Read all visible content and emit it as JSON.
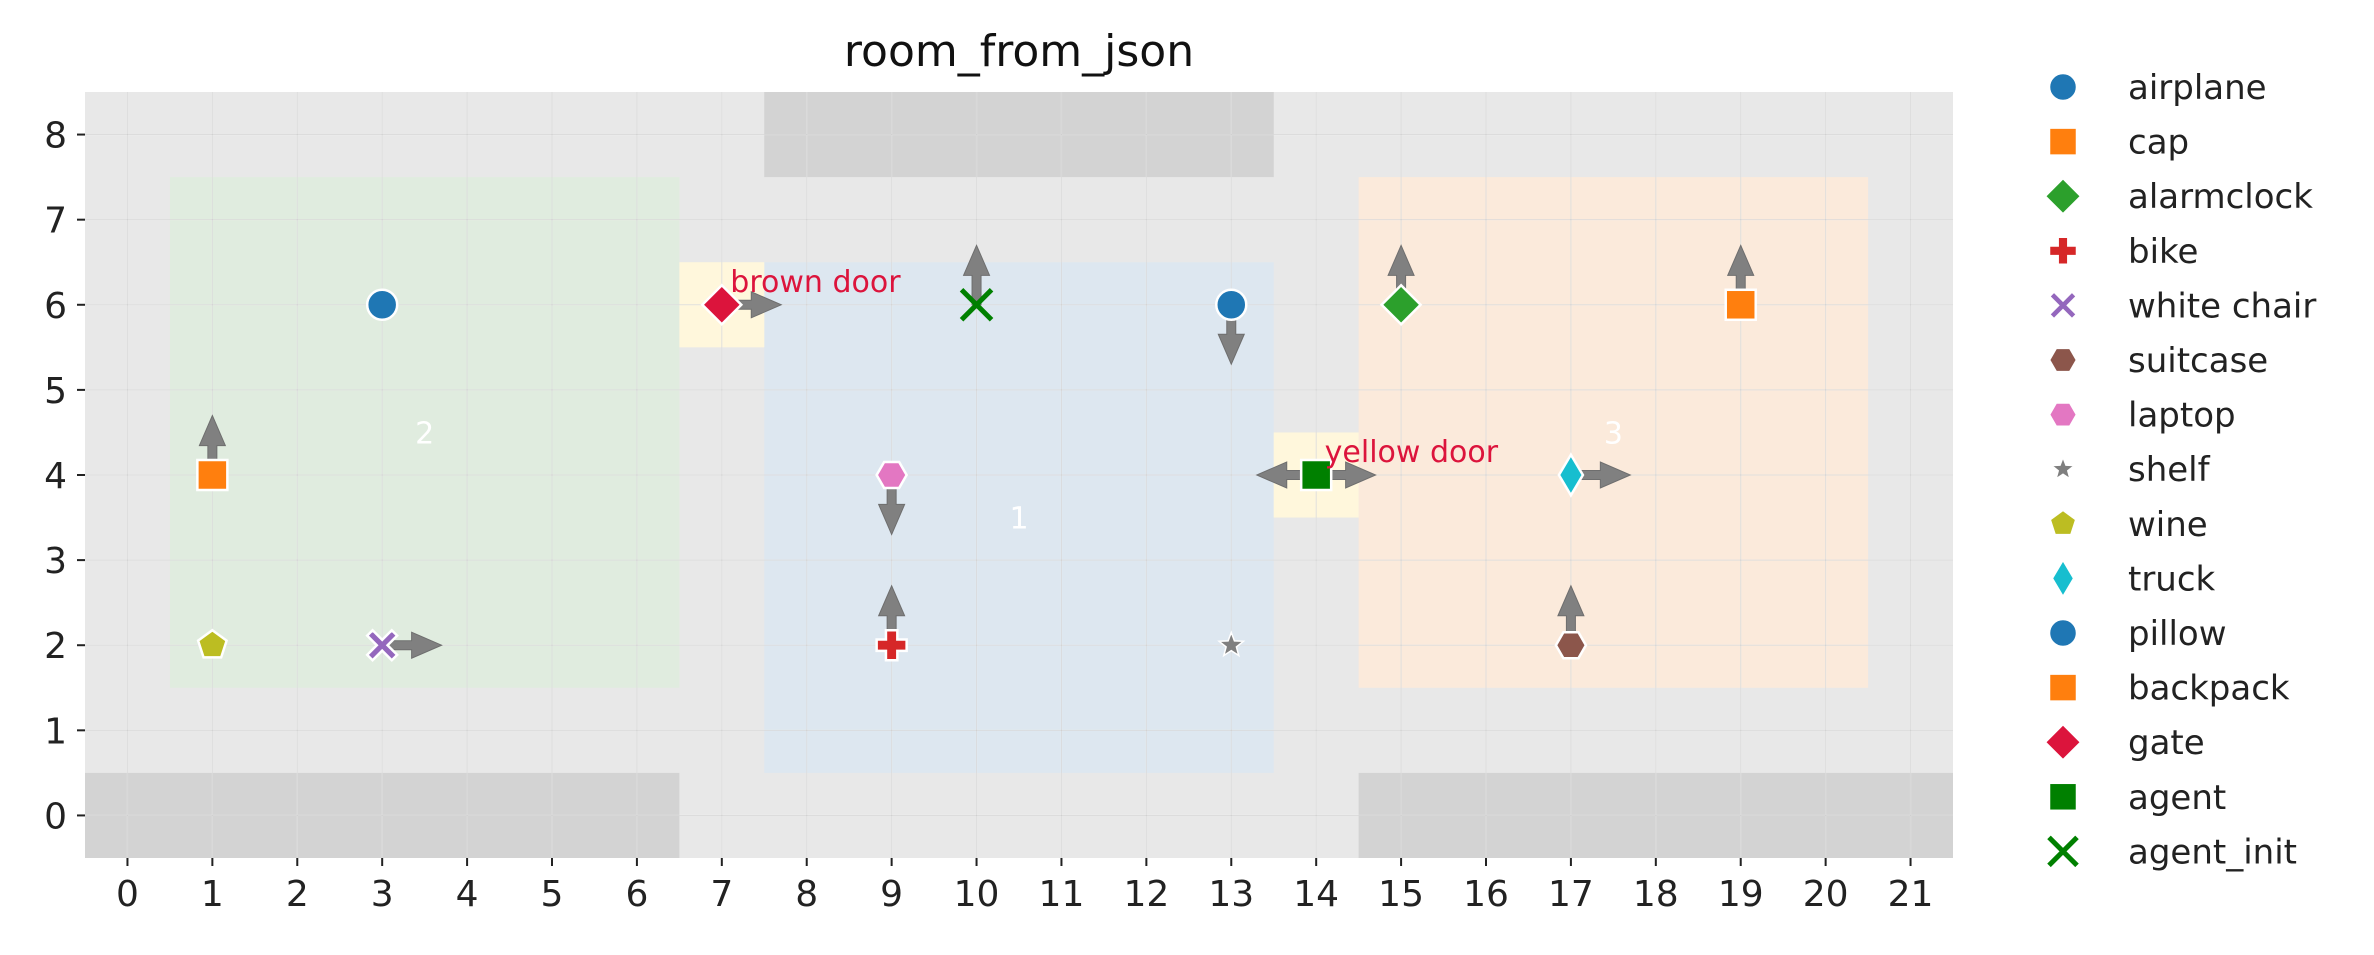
{
  "chart_data": {
    "type": "scatter",
    "title": "room_from_json",
    "xlabel": "",
    "ylabel": "",
    "xlim": [
      -0.5,
      21.5
    ],
    "ylim": [
      -0.5,
      8.5
    ],
    "x_ticks": [
      0,
      1,
      2,
      3,
      4,
      5,
      6,
      7,
      8,
      9,
      10,
      11,
      12,
      13,
      14,
      15,
      16,
      17,
      18,
      19,
      20,
      21
    ],
    "y_ticks": [
      0,
      1,
      2,
      3,
      4,
      5,
      6,
      7,
      8
    ],
    "grid": true,
    "legend_position": "right",
    "colors": {
      "background": "#e8e8e8",
      "wall": "#d3d3d3",
      "door": "#fff7dc",
      "arrow": "#808080",
      "door_label": "#dc143c"
    },
    "walls": [
      {
        "x": [
          -0.5,
          6.5
        ],
        "y": [
          -0.5,
          0.5
        ]
      },
      {
        "x": [
          14.5,
          21.5
        ],
        "y": [
          -0.5,
          0.5
        ]
      },
      {
        "x": [
          7.5,
          13.5
        ],
        "y": [
          7.5,
          8.5
        ]
      }
    ],
    "rooms": [
      {
        "label": "1",
        "x": [
          7.5,
          13.5
        ],
        "y": [
          0.5,
          6.5
        ],
        "color": "#dde7f0",
        "label_at": [
          10.5,
          3.5
        ]
      },
      {
        "label": "2",
        "x": [
          0.5,
          6.5
        ],
        "y": [
          1.5,
          7.5
        ],
        "color": "#e0ecdf",
        "label_at": [
          3.5,
          4.5
        ]
      },
      {
        "label": "3",
        "x": [
          14.5,
          20.5
        ],
        "y": [
          1.5,
          7.5
        ],
        "color": "#fbeadb",
        "label_at": [
          17.5,
          4.5
        ]
      }
    ],
    "doors": [
      {
        "label": "brown door",
        "x": [
          6.5,
          7.5
        ],
        "y": [
          5.5,
          6.5
        ],
        "label_at": [
          7.1,
          6.15
        ]
      },
      {
        "label": "yellow door",
        "x": [
          13.5,
          14.5
        ],
        "y": [
          3.5,
          4.5
        ],
        "label_at": [
          14.1,
          4.15
        ]
      }
    ],
    "series": [
      {
        "name": "airplane",
        "marker": "circle",
        "color": "#1f77b4",
        "points": [
          {
            "x": 3,
            "y": 6
          }
        ]
      },
      {
        "name": "cap",
        "marker": "square",
        "color": "#ff7f0e",
        "points": [
          {
            "x": 1,
            "y": 4,
            "dir": "up"
          }
        ]
      },
      {
        "name": "alarmclock",
        "marker": "diamond",
        "color": "#2ca02c",
        "points": [
          {
            "x": 15,
            "y": 6,
            "dir": "up"
          }
        ]
      },
      {
        "name": "bike",
        "marker": "plus",
        "color": "#d62728",
        "points": [
          {
            "x": 9,
            "y": 2,
            "dir": "up"
          }
        ]
      },
      {
        "name": "white chair",
        "marker": "x",
        "color": "#9467bd",
        "points": [
          {
            "x": 3,
            "y": 2,
            "dir": "right"
          }
        ]
      },
      {
        "name": "suitcase",
        "marker": "hexagon",
        "color": "#8c564b",
        "points": [
          {
            "x": 17,
            "y": 2,
            "dir": "up"
          }
        ]
      },
      {
        "name": "laptop",
        "marker": "hexagon",
        "color": "#e377c2",
        "points": [
          {
            "x": 9,
            "y": 4,
            "dir": "down"
          }
        ]
      },
      {
        "name": "shelf",
        "marker": "star",
        "color": "#7f7f7f",
        "points": [
          {
            "x": 13,
            "y": 2
          }
        ]
      },
      {
        "name": "wine",
        "marker": "pentagon",
        "color": "#bcbd22",
        "points": [
          {
            "x": 1,
            "y": 2
          }
        ]
      },
      {
        "name": "truck",
        "marker": "thin_diamond",
        "color": "#17becf",
        "points": [
          {
            "x": 17,
            "y": 4,
            "dir": "right"
          }
        ]
      },
      {
        "name": "pillow",
        "marker": "circle",
        "color": "#1f77b4",
        "points": [
          {
            "x": 13,
            "y": 6,
            "dir": "down"
          }
        ]
      },
      {
        "name": "backpack",
        "marker": "square",
        "color": "#ff7f0e",
        "points": [
          {
            "x": 19,
            "y": 6,
            "dir": "up"
          }
        ]
      },
      {
        "name": "gate",
        "marker": "diamond",
        "color": "#dc143c",
        "points": [
          {
            "x": 7,
            "y": 6,
            "dir": "right"
          }
        ]
      },
      {
        "name": "agent",
        "marker": "square",
        "color": "#008000",
        "points": [
          {
            "x": 14,
            "y": 4,
            "dirs": [
              "left",
              "right"
            ]
          }
        ]
      },
      {
        "name": "agent_init",
        "marker": "x_thin",
        "color": "#008000",
        "points": [
          {
            "x": 10,
            "y": 6,
            "dir": "up"
          }
        ]
      }
    ]
  }
}
